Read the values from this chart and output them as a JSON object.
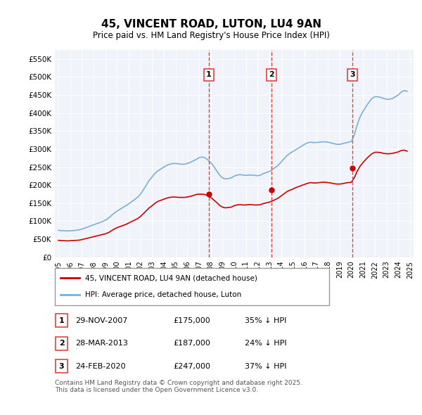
{
  "title": "45, VINCENT ROAD, LUTON, LU4 9AN",
  "subtitle": "Price paid vs. HM Land Registry's House Price Index (HPI)",
  "ylabel": "",
  "background_color": "#ffffff",
  "plot_bg_color": "#f0f4fa",
  "grid_color": "#ffffff",
  "ylim": [
    0,
    575000
  ],
  "yticks": [
    0,
    50000,
    100000,
    150000,
    200000,
    250000,
    300000,
    350000,
    400000,
    450000,
    500000,
    550000
  ],
  "ytick_labels": [
    "£0",
    "£50K",
    "£100K",
    "£150K",
    "£200K",
    "£250K",
    "£300K",
    "£350K",
    "£400K",
    "£450K",
    "£500K",
    "£550K"
  ],
  "sale_dates": [
    "2007-11-29",
    "2013-03-28",
    "2020-02-24"
  ],
  "sale_prices": [
    175000,
    187000,
    247000
  ],
  "sale_labels": [
    "1",
    "2",
    "3"
  ],
  "sale_info": [
    [
      "1",
      "29-NOV-2007",
      "£175,000",
      "35% ↓ HPI"
    ],
    [
      "2",
      "28-MAR-2013",
      "£187,000",
      "24% ↓ HPI"
    ],
    [
      "3",
      "24-FEB-2020",
      "£247,000",
      "37% ↓ HPI"
    ]
  ],
  "legend_line1": "45, VINCENT ROAD, LU4 9AN (detached house)",
  "legend_line2": "HPI: Average price, detached house, Luton",
  "red_line_color": "#cc0000",
  "blue_line_color": "#7ab0d4",
  "vline_color": "#dd4444",
  "footer": "Contains HM Land Registry data © Crown copyright and database right 2025.\nThis data is licensed under the Open Government Licence v3.0.",
  "hpi_x": [
    1995.0,
    1995.25,
    1995.5,
    1995.75,
    1996.0,
    1996.25,
    1996.5,
    1996.75,
    1997.0,
    1997.25,
    1997.5,
    1997.75,
    1998.0,
    1998.25,
    1998.5,
    1998.75,
    1999.0,
    1999.25,
    1999.5,
    1999.75,
    2000.0,
    2000.25,
    2000.5,
    2000.75,
    2001.0,
    2001.25,
    2001.5,
    2001.75,
    2002.0,
    2002.25,
    2002.5,
    2002.75,
    2003.0,
    2003.25,
    2003.5,
    2003.75,
    2004.0,
    2004.25,
    2004.5,
    2004.75,
    2005.0,
    2005.25,
    2005.5,
    2005.75,
    2006.0,
    2006.25,
    2006.5,
    2006.75,
    2007.0,
    2007.25,
    2007.5,
    2007.75,
    2008.0,
    2008.25,
    2008.5,
    2008.75,
    2009.0,
    2009.25,
    2009.5,
    2009.75,
    2010.0,
    2010.25,
    2010.5,
    2010.75,
    2011.0,
    2011.25,
    2011.5,
    2011.75,
    2012.0,
    2012.25,
    2012.5,
    2012.75,
    2013.0,
    2013.25,
    2013.5,
    2013.75,
    2014.0,
    2014.25,
    2014.5,
    2014.75,
    2015.0,
    2015.25,
    2015.5,
    2015.75,
    2016.0,
    2016.25,
    2016.5,
    2016.75,
    2017.0,
    2017.25,
    2017.5,
    2017.75,
    2018.0,
    2018.25,
    2018.5,
    2018.75,
    2019.0,
    2019.25,
    2019.5,
    2019.75,
    2020.0,
    2020.25,
    2020.5,
    2020.75,
    2021.0,
    2021.25,
    2021.5,
    2021.75,
    2022.0,
    2022.25,
    2022.5,
    2022.75,
    2023.0,
    2023.25,
    2023.5,
    2023.75,
    2024.0,
    2024.25,
    2024.5,
    2024.75
  ],
  "hpi_y": [
    75000,
    74000,
    73500,
    73000,
    73500,
    74000,
    75000,
    76000,
    78000,
    81000,
    84000,
    87000,
    90000,
    93000,
    96000,
    99000,
    103000,
    108000,
    115000,
    122000,
    128000,
    133000,
    138000,
    143000,
    148000,
    154000,
    160000,
    166000,
    175000,
    187000,
    200000,
    213000,
    223000,
    233000,
    240000,
    245000,
    250000,
    255000,
    258000,
    260000,
    260000,
    259000,
    258000,
    258000,
    260000,
    263000,
    267000,
    271000,
    276000,
    278000,
    276000,
    270000,
    262000,
    252000,
    240000,
    228000,
    220000,
    217000,
    218000,
    220000,
    225000,
    228000,
    229000,
    228000,
    227000,
    228000,
    228000,
    227000,
    226000,
    228000,
    232000,
    235000,
    238000,
    243000,
    249000,
    255000,
    264000,
    273000,
    282000,
    288000,
    293000,
    298000,
    303000,
    308000,
    313000,
    317000,
    319000,
    318000,
    318000,
    319000,
    320000,
    320000,
    319000,
    317000,
    315000,
    313000,
    313000,
    315000,
    317000,
    319000,
    321000,
    340000,
    368000,
    390000,
    405000,
    418000,
    430000,
    440000,
    445000,
    445000,
    443000,
    440000,
    438000,
    438000,
    440000,
    445000,
    450000,
    458000,
    462000,
    460000
  ],
  "red_x": [
    1995.0,
    1995.25,
    1995.5,
    1995.75,
    1996.0,
    1996.25,
    1996.5,
    1996.75,
    1997.0,
    1997.25,
    1997.5,
    1997.75,
    1998.0,
    1998.25,
    1998.5,
    1998.75,
    1999.0,
    1999.25,
    1999.5,
    1999.75,
    2000.0,
    2000.25,
    2000.5,
    2000.75,
    2001.0,
    2001.25,
    2001.5,
    2001.75,
    2002.0,
    2002.25,
    2002.5,
    2002.75,
    2003.0,
    2003.25,
    2003.5,
    2003.75,
    2004.0,
    2004.25,
    2004.5,
    2004.75,
    2005.0,
    2005.25,
    2005.5,
    2005.75,
    2006.0,
    2006.25,
    2006.5,
    2006.75,
    2007.0,
    2007.25,
    2007.5,
    2007.75,
    2008.0,
    2008.25,
    2008.5,
    2008.75,
    2009.0,
    2009.25,
    2009.5,
    2009.75,
    2010.0,
    2010.25,
    2010.5,
    2010.75,
    2011.0,
    2011.25,
    2011.5,
    2011.75,
    2012.0,
    2012.25,
    2012.5,
    2012.75,
    2013.0,
    2013.25,
    2013.5,
    2013.75,
    2014.0,
    2014.25,
    2014.5,
    2014.75,
    2015.0,
    2015.25,
    2015.5,
    2015.75,
    2016.0,
    2016.25,
    2016.5,
    2016.75,
    2017.0,
    2017.25,
    2017.5,
    2017.75,
    2018.0,
    2018.25,
    2018.5,
    2018.75,
    2019.0,
    2019.25,
    2019.5,
    2019.75,
    2020.0,
    2020.25,
    2020.5,
    2020.75,
    2021.0,
    2021.25,
    2021.5,
    2021.75,
    2022.0,
    2022.25,
    2022.5,
    2022.75,
    2023.0,
    2023.25,
    2023.5,
    2023.75,
    2024.0,
    2024.25,
    2024.5,
    2024.75
  ],
  "red_y": [
    47000,
    46500,
    46000,
    45500,
    46000,
    46500,
    47000,
    47500,
    49000,
    51000,
    53000,
    55000,
    57000,
    59000,
    61000,
    63000,
    65000,
    68000,
    73000,
    78000,
    82000,
    85000,
    88000,
    91000,
    95000,
    99000,
    103000,
    107000,
    113000,
    121000,
    129000,
    137000,
    143000,
    150000,
    155000,
    158000,
    161000,
    164000,
    166000,
    167000,
    167000,
    166000,
    166000,
    166000,
    167000,
    169000,
    171000,
    174000,
    175000,
    175000,
    174000,
    171000,
    166000,
    159000,
    152000,
    144000,
    139000,
    137000,
    138000,
    139000,
    143000,
    145000,
    146000,
    145000,
    145000,
    146000,
    146000,
    145000,
    145000,
    146000,
    149000,
    151000,
    153000,
    156000,
    160000,
    164000,
    170000,
    176000,
    182000,
    186000,
    189000,
    193000,
    196000,
    199000,
    202000,
    205000,
    207000,
    206000,
    206000,
    207000,
    208000,
    208000,
    207000,
    206000,
    204000,
    203000,
    203000,
    204000,
    206000,
    207000,
    208000,
    221000,
    239000,
    253000,
    263000,
    272000,
    280000,
    287000,
    291000,
    291000,
    290000,
    288000,
    287000,
    287000,
    288000,
    290000,
    292000,
    296000,
    297000,
    294000
  ]
}
